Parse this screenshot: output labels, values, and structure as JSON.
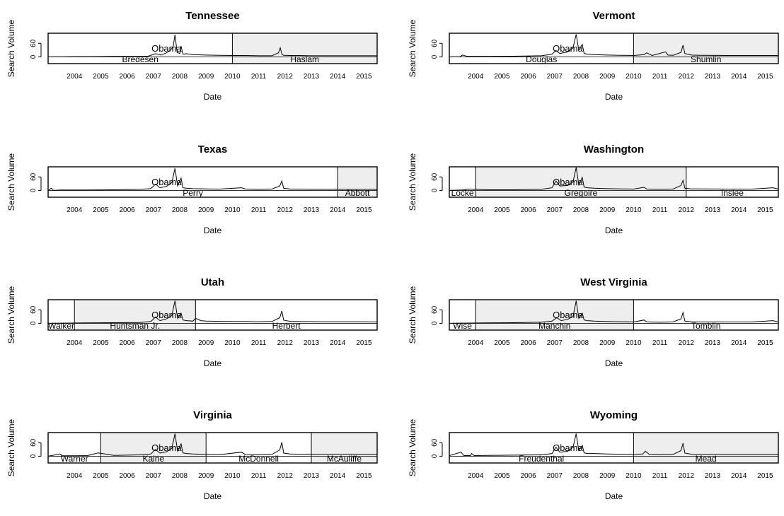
{
  "colors": {
    "shade": "#eeeeee",
    "line": "#000000",
    "frame": "#000000"
  },
  "chart_data": [
    {
      "type": "line",
      "title": "Tennessee",
      "xlabel": "Date",
      "ylabel": "Search Volume",
      "x_ticks": [
        "2004",
        "2005",
        "2006",
        "2007",
        "2008",
        "2009",
        "2010",
        "2011",
        "2012",
        "2013",
        "2014",
        "2015"
      ],
      "y_ticks": [
        0,
        60
      ],
      "xlim": [
        2003.5,
        2016.0
      ],
      "ylim": [
        -30,
        105
      ],
      "peak_label": "Obama",
      "terms": [
        {
          "governor": "Bredesen",
          "start": 2003.5,
          "end": 2010.5,
          "shaded": false
        },
        {
          "governor": "Haslam",
          "start": 2010.5,
          "end": 2016.0,
          "shaded": true
        }
      ],
      "series": [
        {
          "x": [
            2003.5,
            2004.0,
            2004.6,
            2005.2,
            2006.0,
            2006.8,
            2007.3,
            2007.58,
            2007.8,
            2008.0,
            2008.15,
            2008.25,
            2008.32,
            2008.4,
            2008.5,
            2008.55,
            2008.62,
            2008.75,
            2009.0,
            2009.5,
            2010.0,
            2010.5,
            2011.0,
            2011.5,
            2012.0,
            2012.25,
            2012.32,
            2012.38,
            2012.45,
            2012.7,
            2013.0,
            2013.5,
            2014.0,
            2014.5,
            2015.0,
            2015.5,
            2016.0
          ],
          "y": [
            0,
            0,
            1,
            1,
            2,
            2,
            3,
            14,
            8,
            18,
            30,
            45,
            98,
            20,
            15,
            48,
            12,
            14,
            10,
            8,
            7,
            6,
            6,
            5,
            5,
            18,
            40,
            12,
            7,
            6,
            6,
            5,
            5,
            5,
            5,
            5,
            5
          ]
        }
      ]
    },
    {
      "type": "line",
      "title": "Vermont",
      "xlabel": "Date",
      "ylabel": "Search Volume",
      "x_ticks": [
        "2004",
        "2005",
        "2006",
        "2007",
        "2008",
        "2009",
        "2010",
        "2011",
        "2012",
        "2013",
        "2014",
        "2015"
      ],
      "y_ticks": [
        0,
        60
      ],
      "xlim": [
        2003.5,
        2016.0
      ],
      "ylim": [
        -30,
        105
      ],
      "peak_label": "Obama",
      "terms": [
        {
          "governor": "Douglas",
          "start": 2003.5,
          "end": 2010.5,
          "shaded": false
        },
        {
          "governor": "Shumlin",
          "start": 2010.5,
          "end": 2016.0,
          "shaded": true
        }
      ],
      "series": [
        {
          "x": [
            2003.5,
            2003.9,
            2004.0,
            2004.2,
            2005.0,
            2006.0,
            2007.0,
            2007.4,
            2007.55,
            2007.7,
            2008.0,
            2008.2,
            2008.32,
            2008.42,
            2008.55,
            2008.62,
            2008.75,
            2009.0,
            2009.5,
            2010.0,
            2010.5,
            2010.9,
            2011.0,
            2011.2,
            2011.72,
            2011.8,
            2012.0,
            2012.3,
            2012.38,
            2012.45,
            2012.7,
            2013.0,
            2014.0,
            2015.0,
            2016.0
          ],
          "y": [
            0,
            0,
            8,
            2,
            2,
            3,
            5,
            12,
            28,
            15,
            22,
            40,
            100,
            30,
            55,
            15,
            12,
            10,
            8,
            7,
            6,
            10,
            18,
            6,
            22,
            8,
            7,
            20,
            52,
            15,
            8,
            7,
            6,
            6,
            6
          ]
        }
      ]
    },
    {
      "type": "line",
      "title": "Texas",
      "xlabel": "Date",
      "ylabel": "Search Volume",
      "x_ticks": [
        "2004",
        "2005",
        "2006",
        "2007",
        "2008",
        "2009",
        "2010",
        "2011",
        "2012",
        "2013",
        "2014",
        "2015"
      ],
      "y_ticks": [
        0,
        60
      ],
      "xlim": [
        2003.5,
        2016.0
      ],
      "ylim": [
        -30,
        105
      ],
      "peak_label": "Obama",
      "terms": [
        {
          "governor": "Perry",
          "start": 2003.5,
          "end": 2014.5,
          "shaded": false
        },
        {
          "governor": "Abbott",
          "start": 2014.5,
          "end": 2016.0,
          "shaded": true
        }
      ],
      "series": [
        {
          "x": [
            2003.5,
            2003.62,
            2003.7,
            2004.0,
            2005.0,
            2006.0,
            2007.0,
            2007.4,
            2007.58,
            2007.75,
            2008.0,
            2008.2,
            2008.32,
            2008.42,
            2008.55,
            2008.62,
            2008.75,
            2009.0,
            2009.5,
            2010.0,
            2010.85,
            2011.0,
            2011.5,
            2012.0,
            2012.3,
            2012.38,
            2012.45,
            2012.7,
            2013.0,
            2014.0,
            2015.0,
            2016.0
          ],
          "y": [
            0,
            10,
            0,
            2,
            2,
            3,
            5,
            8,
            28,
            12,
            18,
            35,
            98,
            20,
            55,
            12,
            10,
            8,
            7,
            6,
            12,
            6,
            5,
            6,
            20,
            42,
            10,
            6,
            6,
            5,
            5,
            5
          ]
        }
      ]
    },
    {
      "type": "line",
      "title": "Washington",
      "xlabel": "Date",
      "ylabel": "Search Volume",
      "x_ticks": [
        "2004",
        "2005",
        "2006",
        "2007",
        "2008",
        "2009",
        "2010",
        "2011",
        "2012",
        "2013",
        "2014",
        "2015"
      ],
      "y_ticks": [
        0,
        60
      ],
      "xlim": [
        2003.5,
        2016.0
      ],
      "ylim": [
        -30,
        105
      ],
      "peak_label": "Obama",
      "terms": [
        {
          "governor": "Locke",
          "start": 2003.5,
          "end": 2004.5,
          "shaded": false
        },
        {
          "governor": "Gregoire",
          "start": 2004.5,
          "end": 2012.5,
          "shaded": true
        },
        {
          "governor": "Inslee",
          "start": 2012.5,
          "end": 2016.0,
          "shaded": false
        }
      ],
      "series": [
        {
          "x": [
            2003.5,
            2004.0,
            2004.2,
            2005.0,
            2006.0,
            2007.0,
            2007.4,
            2007.55,
            2007.7,
            2008.0,
            2008.2,
            2008.32,
            2008.42,
            2008.55,
            2008.62,
            2008.75,
            2009.0,
            2009.5,
            2010.0,
            2010.5,
            2010.9,
            2011.0,
            2011.5,
            2012.0,
            2012.3,
            2012.38,
            2012.45,
            2012.7,
            2013.0,
            2014.0,
            2015.0,
            2015.8,
            2016.0
          ],
          "y": [
            0,
            2,
            6,
            3,
            3,
            5,
            12,
            42,
            20,
            22,
            38,
            102,
            25,
            58,
            15,
            12,
            10,
            8,
            7,
            6,
            14,
            6,
            5,
            6,
            22,
            45,
            10,
            7,
            7,
            6,
            6,
            12,
            6
          ]
        }
      ]
    },
    {
      "type": "line",
      "title": "Utah",
      "xlabel": "Date",
      "ylabel": "Search Volume",
      "x_ticks": [
        "2004",
        "2005",
        "2006",
        "2007",
        "2008",
        "2009",
        "2010",
        "2011",
        "2012",
        "2013",
        "2014",
        "2015"
      ],
      "y_ticks": [
        0,
        60
      ],
      "xlim": [
        2003.5,
        2016.0
      ],
      "ylim": [
        -30,
        105
      ],
      "peak_label": "Obama",
      "terms": [
        {
          "governor": "Walker",
          "start": 2003.5,
          "end": 2004.5,
          "shaded": false
        },
        {
          "governor": "Huntsman Jr.",
          "start": 2004.5,
          "end": 2009.1,
          "shaded": true
        },
        {
          "governor": "Herbert",
          "start": 2009.1,
          "end": 2016.0,
          "shaded": false
        }
      ],
      "series": [
        {
          "x": [
            2003.5,
            2004.0,
            2005.0,
            2006.0,
            2007.0,
            2007.4,
            2007.58,
            2007.75,
            2008.0,
            2008.2,
            2008.32,
            2008.42,
            2008.55,
            2008.62,
            2008.75,
            2009.0,
            2009.1,
            2009.3,
            2009.5,
            2010.0,
            2010.5,
            2011.0,
            2011.5,
            2012.0,
            2012.3,
            2012.38,
            2012.45,
            2012.7,
            2013.0,
            2014.0,
            2015.0,
            2016.0
          ],
          "y": [
            0,
            1,
            2,
            3,
            4,
            8,
            28,
            12,
            20,
            35,
            100,
            22,
            45,
            15,
            12,
            10,
            22,
            12,
            10,
            9,
            8,
            8,
            7,
            8,
            25,
            55,
            14,
            9,
            8,
            7,
            7,
            6
          ]
        }
      ]
    },
    {
      "type": "line",
      "title": "West Virginia",
      "xlabel": "Date",
      "ylabel": "Search Volume",
      "x_ticks": [
        "2004",
        "2005",
        "2006",
        "2007",
        "2008",
        "2009",
        "2010",
        "2011",
        "2012",
        "2013",
        "2014",
        "2015"
      ],
      "y_ticks": [
        0,
        60
      ],
      "xlim": [
        2003.5,
        2016.0
      ],
      "ylim": [
        -30,
        105
      ],
      "peak_label": "Obama",
      "terms": [
        {
          "governor": "Wise",
          "start": 2003.5,
          "end": 2004.5,
          "shaded": false
        },
        {
          "governor": "Manchin",
          "start": 2004.5,
          "end": 2010.5,
          "shaded": true
        },
        {
          "governor": "Tomblin",
          "start": 2010.5,
          "end": 2016.0,
          "shaded": false
        }
      ],
      "series": [
        {
          "x": [
            2003.5,
            2004.0,
            2005.0,
            2006.0,
            2007.0,
            2007.4,
            2007.58,
            2007.75,
            2008.0,
            2008.2,
            2008.32,
            2008.42,
            2008.55,
            2008.62,
            2008.75,
            2009.0,
            2009.5,
            2010.0,
            2010.5,
            2010.9,
            2011.0,
            2011.5,
            2012.0,
            2012.3,
            2012.38,
            2012.45,
            2012.7,
            2013.0,
            2014.0,
            2015.0,
            2015.8,
            2016.0
          ],
          "y": [
            0,
            1,
            2,
            3,
            5,
            10,
            25,
            12,
            18,
            30,
            100,
            22,
            45,
            15,
            12,
            10,
            8,
            7,
            6,
            15,
            6,
            5,
            6,
            20,
            48,
            10,
            7,
            6,
            6,
            6,
            12,
            6
          ]
        }
      ]
    },
    {
      "type": "line",
      "title": "Virginia",
      "xlabel": "Date",
      "ylabel": "Search Volume",
      "x_ticks": [
        "2004",
        "2005",
        "2006",
        "2007",
        "2008",
        "2009",
        "2010",
        "2011",
        "2012",
        "2013",
        "2014",
        "2015"
      ],
      "y_ticks": [
        0,
        60
      ],
      "xlim": [
        2003.5,
        2016.0
      ],
      "ylim": [
        -30,
        105
      ],
      "peak_label": "Obama",
      "terms": [
        {
          "governor": "Warner",
          "start": 2003.5,
          "end": 2005.5,
          "shaded": false
        },
        {
          "governor": "Kaine",
          "start": 2005.5,
          "end": 2009.5,
          "shaded": true
        },
        {
          "governor": "McDonnell",
          "start": 2009.5,
          "end": 2013.5,
          "shaded": false
        },
        {
          "governor": "McAuliffe",
          "start": 2013.5,
          "end": 2016.0,
          "shaded": true
        }
      ],
      "series": [
        {
          "x": [
            2003.5,
            2003.95,
            2004.05,
            2004.5,
            2005.0,
            2005.4,
            2006.0,
            2007.0,
            2007.4,
            2007.58,
            2007.75,
            2008.0,
            2008.2,
            2008.32,
            2008.42,
            2008.55,
            2008.62,
            2008.75,
            2009.0,
            2009.5,
            2010.0,
            2010.85,
            2011.0,
            2011.5,
            2012.0,
            2012.3,
            2012.38,
            2012.45,
            2012.7,
            2013.0,
            2014.0,
            2015.0,
            2016.0
          ],
          "y": [
            0,
            10,
            2,
            2,
            3,
            15,
            4,
            6,
            10,
            30,
            14,
            20,
            35,
            100,
            22,
            55,
            15,
            12,
            10,
            8,
            7,
            18,
            7,
            6,
            8,
            28,
            62,
            14,
            10,
            9,
            9,
            9,
            9
          ]
        }
      ]
    },
    {
      "type": "line",
      "title": "Wyoming",
      "xlabel": "Date",
      "ylabel": "Search Volume",
      "x_ticks": [
        "2004",
        "2005",
        "2006",
        "2007",
        "2008",
        "2009",
        "2010",
        "2011",
        "2012",
        "2013",
        "2014",
        "2015"
      ],
      "y_ticks": [
        0,
        60
      ],
      "xlim": [
        2003.5,
        2016.0
      ],
      "ylim": [
        -30,
        105
      ],
      "peak_label": "Obama",
      "terms": [
        {
          "governor": "Freudenthal",
          "start": 2003.5,
          "end": 2010.5,
          "shaded": false
        },
        {
          "governor": "Mead",
          "start": 2010.5,
          "end": 2016.0,
          "shaded": true
        }
      ],
      "series": [
        {
          "x": [
            2003.5,
            2003.95,
            2004.05,
            2004.3,
            2004.35,
            2004.45,
            2005.0,
            2006.0,
            2007.0,
            2007.4,
            2007.55,
            2007.7,
            2008.0,
            2008.2,
            2008.32,
            2008.42,
            2008.55,
            2008.62,
            2008.75,
            2009.0,
            2009.5,
            2010.0,
            2010.5,
            2010.85,
            2010.95,
            2011.1,
            2011.5,
            2012.0,
            2012.3,
            2012.38,
            2012.45,
            2012.7,
            2013.0,
            2014.0,
            2015.0,
            2016.0
          ],
          "y": [
            3,
            18,
            3,
            3,
            12,
            3,
            4,
            5,
            6,
            12,
            40,
            18,
            22,
            40,
            100,
            25,
            48,
            15,
            12,
            12,
            10,
            9,
            8,
            10,
            22,
            8,
            7,
            8,
            25,
            58,
            14,
            9,
            8,
            8,
            8,
            8
          ]
        }
      ]
    }
  ]
}
